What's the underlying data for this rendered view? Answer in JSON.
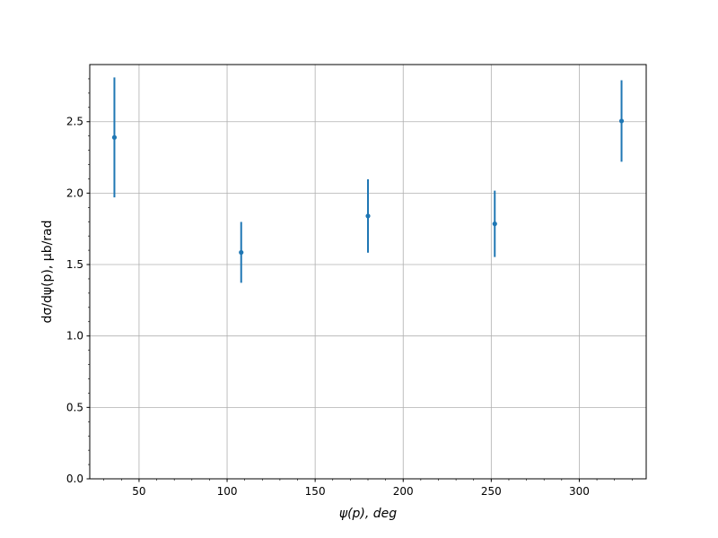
{
  "chart_data": {
    "type": "scatter",
    "title": "",
    "xlabel": "ψ(p), deg",
    "ylabel": "dσ/dψ(p), μb/rad",
    "xlim": [
      22,
      338
    ],
    "ylim": [
      0,
      2.9
    ],
    "xticks": [
      50,
      100,
      150,
      200,
      250,
      300
    ],
    "yticks": [
      0,
      0.5,
      1.0,
      1.5,
      2.0,
      2.5
    ],
    "xtick_labels": [
      "50",
      "100",
      "150",
      "200",
      "250",
      "300"
    ],
    "ytick_labels": [
      "0.0",
      "0.5",
      "1.0",
      "1.5",
      "2.0",
      "2.5"
    ],
    "grid": true,
    "color": "#1f77b4",
    "points": [
      {
        "x": 36,
        "y": 2.39,
        "yerr": 0.42
      },
      {
        "x": 108,
        "y": 1.585,
        "yerr": 0.213
      },
      {
        "x": 180,
        "y": 1.84,
        "yerr": 0.257
      },
      {
        "x": 252,
        "y": 1.785,
        "yerr": 0.232
      },
      {
        "x": 324,
        "y": 2.505,
        "yerr": 0.285
      }
    ]
  }
}
